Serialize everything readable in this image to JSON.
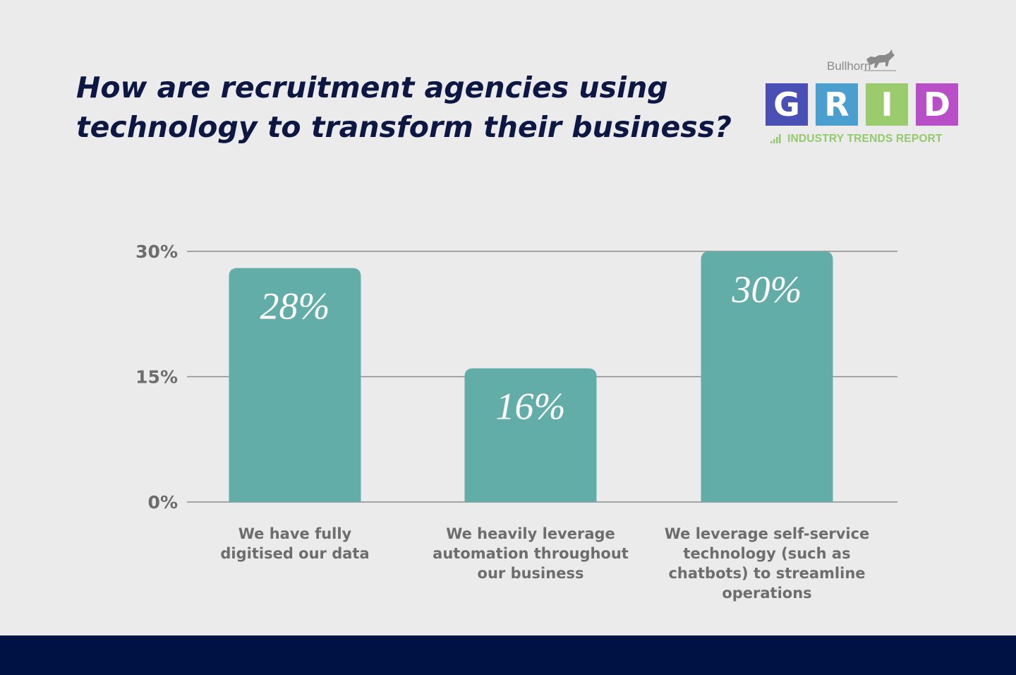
{
  "title_line1": "How are recruitment agencies using",
  "title_line2": "technology to transform their business?",
  "logo": {
    "brand": "Bullhorn",
    "letters": [
      "G",
      "R",
      "I",
      "D"
    ],
    "tile_colors": [
      "#4a4fb5",
      "#4a9fce",
      "#9acb6c",
      "#b94fc6"
    ],
    "tagline": "INDUSTRY TRENDS REPORT",
    "icon": "bull-icon"
  },
  "colors": {
    "bar": "#63ada9",
    "grid": "#8c8c8c",
    "tick_text": "#6d6d6d",
    "title": "#0c1744",
    "footer": "#001244"
  },
  "chart_data": {
    "type": "bar",
    "categories": [
      "We have fully digitised our data",
      "We heavily leverage automation throughout our business",
      "We leverage self-service technology (such as chatbots) to streamline operations"
    ],
    "category_lines": [
      [
        "We have fully",
        "digitised our data"
      ],
      [
        "We heavily leverage",
        "automation throughout",
        "our business"
      ],
      [
        "We leverage self-service",
        "technology (such as",
        "chatbots) to streamline",
        "operations"
      ]
    ],
    "values": [
      28,
      16,
      30
    ],
    "data_labels": [
      "28%",
      "16%",
      "30%"
    ],
    "yticks": [
      0,
      15,
      30
    ],
    "ytick_labels": [
      "0%",
      "15%",
      "30%"
    ],
    "ylim": [
      0,
      30
    ],
    "grid": true
  }
}
